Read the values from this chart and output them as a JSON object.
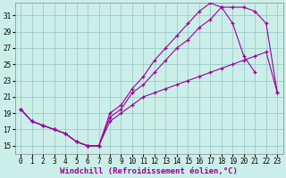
{
  "xlabel": "Windchill (Refroidissement éolien,°C)",
  "bg_color": "#cceee8",
  "grid_color": "#99cccc",
  "line_color": "#990099",
  "xlim": [
    -0.5,
    23.5
  ],
  "ylim": [
    14.0,
    32.5
  ],
  "xticks": [
    0,
    1,
    2,
    3,
    4,
    5,
    6,
    7,
    8,
    9,
    10,
    11,
    12,
    13,
    14,
    15,
    16,
    17,
    18,
    19,
    20,
    21,
    22,
    23
  ],
  "yticks": [
    15,
    17,
    19,
    21,
    23,
    25,
    27,
    29,
    31
  ],
  "line1_x": [
    0,
    1,
    2,
    3,
    4,
    5,
    6,
    7,
    8,
    9,
    10,
    11,
    12,
    13,
    14,
    15,
    16,
    17,
    18,
    19,
    20,
    21,
    22,
    23
  ],
  "line1_y": [
    19.5,
    18.0,
    17.5,
    17.0,
    16.5,
    15.5,
    15.0,
    15.0,
    18.5,
    19.5,
    21.5,
    22.5,
    24.0,
    25.5,
    27.0,
    28.0,
    29.5,
    30.5,
    32.0,
    32.0,
    32.0,
    31.5,
    30.0,
    21.5
  ],
  "line2_x": [
    0,
    1,
    2,
    3,
    4,
    5,
    6,
    7,
    8,
    9,
    10,
    11,
    12,
    13,
    14,
    15,
    16,
    17,
    18,
    19,
    20,
    21
  ],
  "line2_y": [
    19.5,
    18.0,
    17.5,
    17.0,
    16.5,
    15.5,
    15.0,
    15.0,
    19.0,
    20.0,
    22.0,
    23.5,
    25.5,
    27.0,
    28.5,
    30.0,
    31.5,
    32.5,
    32.0,
    30.0,
    26.0,
    24.0
  ],
  "line3_x": [
    0,
    1,
    2,
    3,
    4,
    5,
    6,
    7,
    8,
    9,
    10,
    11,
    12,
    13,
    14,
    15,
    16,
    17,
    18,
    19,
    20,
    21,
    22,
    23
  ],
  "line3_y": [
    19.5,
    18.0,
    17.5,
    17.0,
    16.5,
    15.5,
    15.0,
    15.0,
    18.0,
    19.0,
    20.0,
    21.0,
    21.5,
    22.0,
    22.5,
    23.0,
    23.5,
    24.0,
    24.5,
    25.0,
    25.5,
    26.0,
    26.5,
    21.5
  ],
  "tick_fontsize": 5.5,
  "xlabel_fontsize": 6.5
}
